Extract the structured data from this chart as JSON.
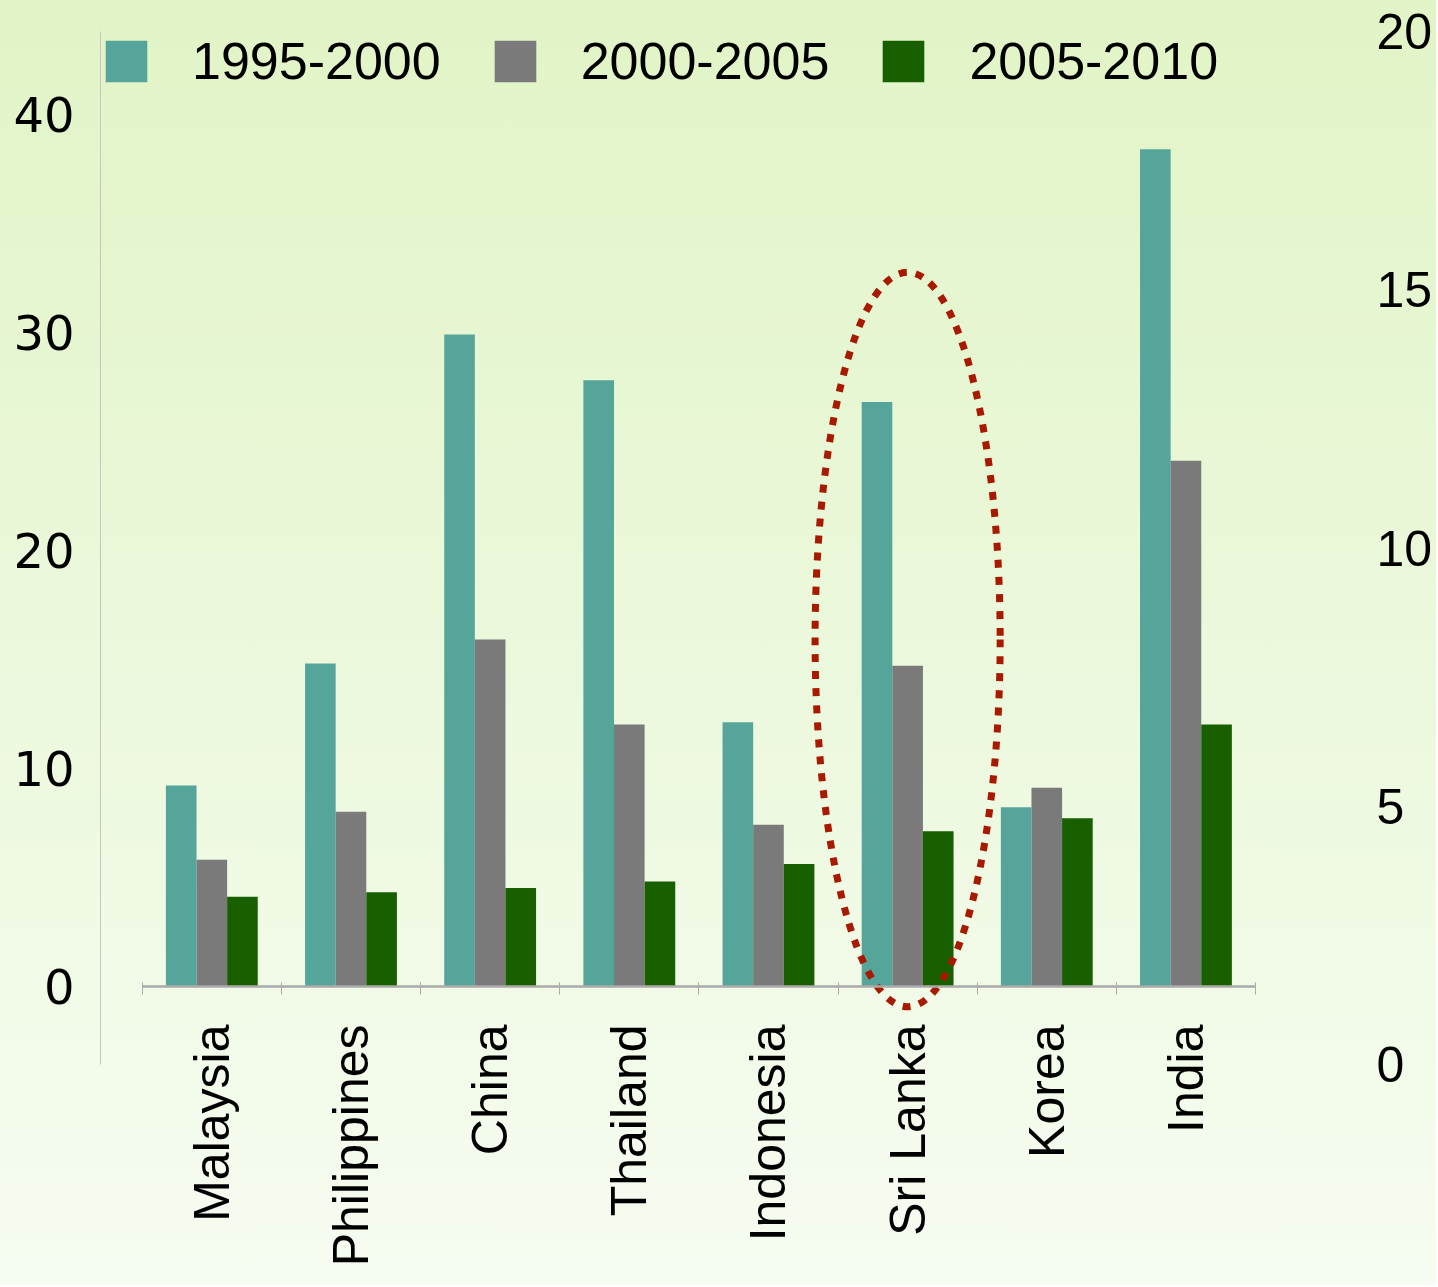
{
  "chart_data": {
    "type": "bar",
    "categories": [
      "Malaysia",
      "Philippines",
      "China",
      "Thailand",
      "Indonesia",
      "Sri Lanka",
      "Korea",
      "India"
    ],
    "series": [
      {
        "name": "1995-2000",
        "color": "#56a59b",
        "values": [
          9.2,
          14.8,
          29.9,
          27.8,
          12.1,
          26.8,
          8.2,
          38.4
        ]
      },
      {
        "name": "2000-2005",
        "color": "#7a7a7a",
        "values": [
          5.8,
          8.0,
          15.9,
          12.0,
          7.4,
          14.7,
          9.1,
          24.1
        ]
      },
      {
        "name": "2005-2010",
        "color": "#185f00",
        "values": [
          4.1,
          4.3,
          4.5,
          4.8,
          5.6,
          7.1,
          7.7,
          12.0
        ]
      }
    ],
    "ylim": [
      -3.6,
      43.8
    ],
    "yticks": [
      0,
      10,
      20,
      30,
      40
    ],
    "y2lim": [
      0,
      20
    ],
    "y2ticks": [
      0,
      5,
      10,
      15,
      20
    ],
    "legend": "top left",
    "grid": false
  }
}
